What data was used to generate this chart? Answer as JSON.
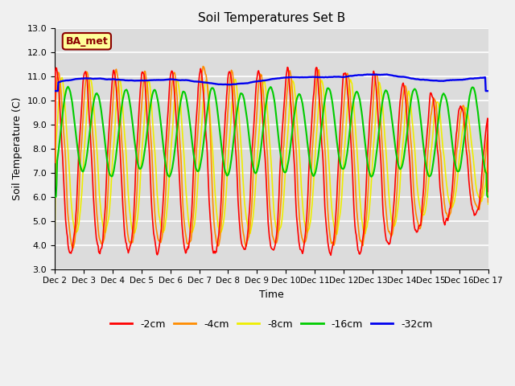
{
  "title": "Soil Temperatures Set B",
  "xlabel": "Time",
  "ylabel": "Soil Temperature (C)",
  "ylim": [
    3.0,
    13.0
  ],
  "ytick_values": [
    3.0,
    4.0,
    5.0,
    6.0,
    7.0,
    8.0,
    9.0,
    10.0,
    11.0,
    12.0,
    13.0
  ],
  "xtick_labels": [
    "Dec 2",
    "Dec 3",
    "Dec 4",
    "Dec 5",
    "Dec 6",
    "Dec 7",
    "Dec 8",
    "Dec 9",
    "Dec 10",
    "Dec 11",
    "Dec 12",
    "Dec 13",
    "Dec 14",
    "Dec 15",
    "Dec 16",
    "Dec 17"
  ],
  "annotation_text": "BA_met",
  "annotation_bg": "#FFFF99",
  "annotation_border": "#8B0000",
  "colors": {
    "2cm": "#FF0000",
    "4cm": "#FF8C00",
    "8cm": "#EEEE00",
    "16cm": "#00CC00",
    "32cm": "#0000EE"
  },
  "legend_labels": [
    "-2cm",
    "-4cm",
    "-8cm",
    "-16cm",
    "-32cm"
  ],
  "line_width": 1.2,
  "bg_color": "#DCDCDC",
  "fig_color": "#F0F0F0",
  "n_days": 15,
  "points_per_day": 48
}
